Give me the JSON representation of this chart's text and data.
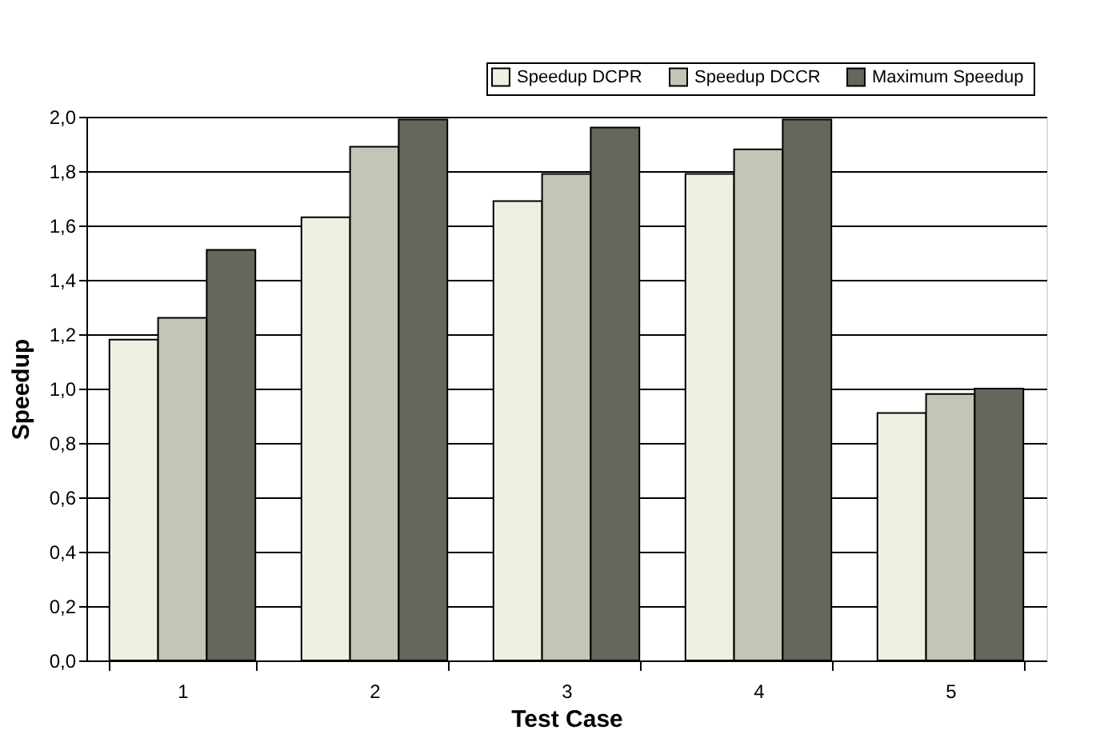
{
  "chart_data": {
    "type": "bar",
    "xlabel": "Test Case",
    "ylabel": "Speedup",
    "categories": [
      "1",
      "2",
      "3",
      "4",
      "5"
    ],
    "series": [
      {
        "name": "Speedup DCPR",
        "color": "#eef0e2",
        "values": [
          1.18,
          1.63,
          1.69,
          1.79,
          0.91
        ]
      },
      {
        "name": "Speedup DCCR",
        "color": "#c4c5b7",
        "values": [
          1.26,
          1.89,
          1.79,
          1.88,
          0.98
        ]
      },
      {
        "name": "Maximum  Speedup",
        "color": "#65665c",
        "values": [
          1.51,
          1.99,
          1.96,
          1.99,
          1.0
        ]
      }
    ],
    "ylim": [
      0,
      2
    ],
    "yticks": [
      {
        "value": 0,
        "label": "0,0"
      },
      {
        "value": 0.2,
        "label": "0,2"
      },
      {
        "value": 0.4,
        "label": "0,4"
      },
      {
        "value": 0.6,
        "label": "0,6"
      },
      {
        "value": 0.8,
        "label": "0,8"
      },
      {
        "value": 1.0,
        "label": "1,0"
      },
      {
        "value": 1.2,
        "label": "1,2"
      },
      {
        "value": 1.4,
        "label": "1,4"
      },
      {
        "value": 1.6,
        "label": "1,6"
      },
      {
        "value": 1.8,
        "label": "1,8"
      },
      {
        "value": 2.0,
        "label": "2,0"
      }
    ],
    "grid": "y",
    "legend": "top right"
  }
}
